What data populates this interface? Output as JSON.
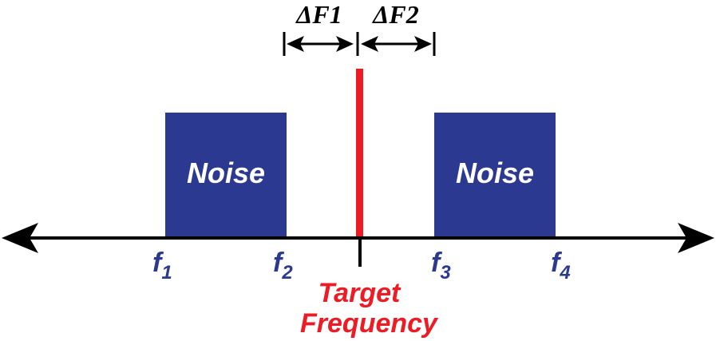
{
  "colors": {
    "noise_band": "#2b3990",
    "target": "#ed1c24",
    "axis": "#000000",
    "freq_label": "#2b3990",
    "noise_text": "#ffffff"
  },
  "noise_bands": [
    {
      "label": "Noise",
      "from": "f1",
      "to": "f2"
    },
    {
      "label": "Noise",
      "from": "f3",
      "to": "f4"
    }
  ],
  "frequency_labels": [
    {
      "base": "f",
      "sub": "1"
    },
    {
      "base": "f",
      "sub": "2"
    },
    {
      "base": "f",
      "sub": "3"
    },
    {
      "base": "f",
      "sub": "4"
    }
  ],
  "target": {
    "line1": "Target",
    "line2": "Frequency"
  },
  "deltas": {
    "left": "ΔF1",
    "right": "ΔF2"
  }
}
